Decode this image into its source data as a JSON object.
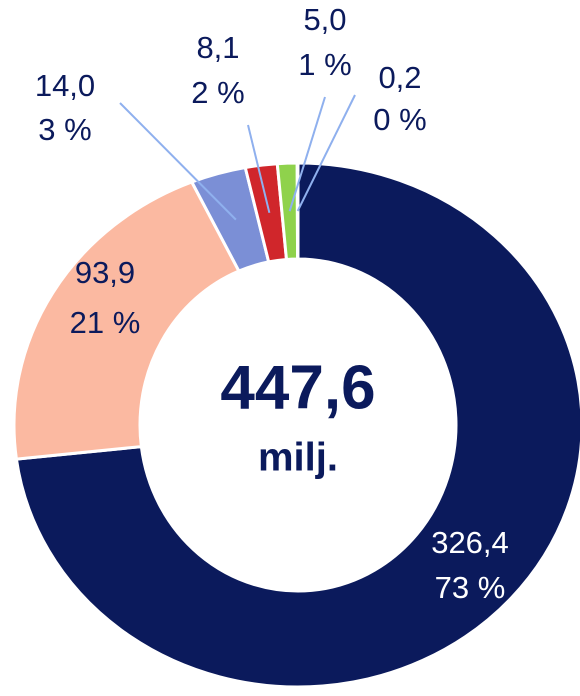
{
  "chart_data": {
    "type": "donut",
    "center_label": "447,6",
    "center_sublabel": "milj.",
    "categories": [
      null,
      null,
      null,
      null,
      null,
      null
    ],
    "values": [
      326.4,
      93.9,
      14.0,
      8.1,
      5.0,
      0.2
    ],
    "value_labels": [
      "326,4",
      "93,9",
      "14,0",
      "8,1",
      "5,0",
      "0,2"
    ],
    "percents": [
      73,
      21,
      3,
      2,
      1,
      0
    ],
    "percent_labels": [
      "73 %",
      "21 %",
      "3 %",
      "2 %",
      "1 %",
      "0 %"
    ],
    "colors": [
      "#0b1a5c",
      "#fbb9a1",
      "#7b8fd6",
      "#d0262b",
      "#8fd24c",
      "#8fb0ee"
    ]
  }
}
